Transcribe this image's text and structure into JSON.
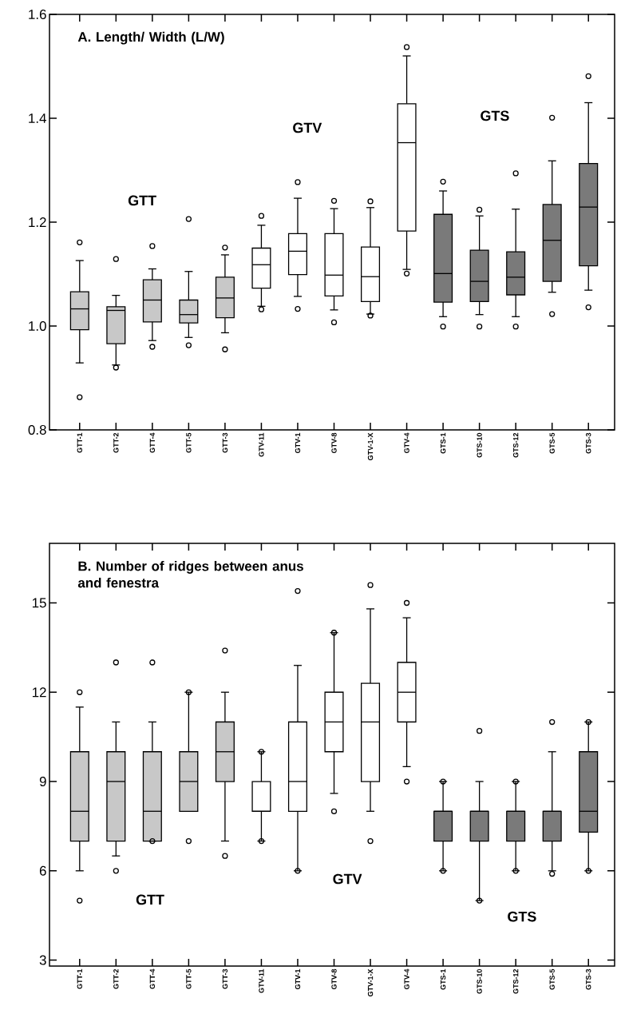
{
  "chart_data": [
    {
      "type": "box",
      "title": "A. Length/ Width (L/W)",
      "categories": [
        "GTT-1",
        "GTT-2",
        "GTT-4",
        "GTT-5",
        "GTT-3",
        "GTV-11",
        "GTV-1",
        "GTV-8",
        "GTV-1-X",
        "GTV-4",
        "GTS-1",
        "GTS-10",
        "GTS-12",
        "GTS-5",
        "GTS-3"
      ],
      "colors": [
        "#c8c8c8",
        "#c8c8c8",
        "#c8c8c8",
        "#c8c8c8",
        "#c8c8c8",
        "#ffffff",
        "#ffffff",
        "#ffffff",
        "#ffffff",
        "#ffffff",
        "#7a7a7a",
        "#7a7a7a",
        "#7a7a7a",
        "#7a7a7a",
        "#7a7a7a"
      ],
      "boxes": [
        {
          "low": 0.929,
          "q1": 0.993,
          "median": 1.033,
          "q3": 1.066,
          "high": 1.126,
          "outliers": [
            1.161,
            0.863
          ]
        },
        {
          "low": 0.925,
          "q1": 0.966,
          "median": 1.03,
          "q3": 1.037,
          "high": 1.059,
          "outliers": [
            1.129,
            0.92
          ]
        },
        {
          "low": 0.972,
          "q1": 1.008,
          "median": 1.05,
          "q3": 1.089,
          "high": 1.11,
          "outliers": [
            1.154,
            0.96
          ]
        },
        {
          "low": 0.978,
          "q1": 1.006,
          "median": 1.022,
          "q3": 1.05,
          "high": 1.105,
          "outliers": [
            1.206,
            0.963
          ]
        },
        {
          "low": 0.987,
          "q1": 1.016,
          "median": 1.054,
          "q3": 1.094,
          "high": 1.137,
          "outliers": [
            1.151,
            0.955
          ]
        },
        {
          "low": 1.038,
          "q1": 1.073,
          "median": 1.118,
          "q3": 1.15,
          "high": 1.194,
          "outliers": [
            1.212,
            1.032
          ]
        },
        {
          "low": 1.057,
          "q1": 1.099,
          "median": 1.144,
          "q3": 1.178,
          "high": 1.246,
          "outliers": [
            1.277,
            1.033
          ]
        },
        {
          "low": 1.031,
          "q1": 1.058,
          "median": 1.098,
          "q3": 1.178,
          "high": 1.226,
          "outliers": [
            1.241,
            1.007
          ]
        },
        {
          "low": 1.023,
          "q1": 1.047,
          "median": 1.095,
          "q3": 1.152,
          "high": 1.228,
          "outliers": [
            1.24,
            1.02
          ]
        },
        {
          "low": 1.109,
          "q1": 1.183,
          "median": 1.353,
          "q3": 1.428,
          "high": 1.52,
          "outliers": [
            1.537,
            1.101
          ]
        },
        {
          "low": 1.018,
          "q1": 1.046,
          "median": 1.101,
          "q3": 1.215,
          "high": 1.26,
          "outliers": [
            1.278,
            0.999
          ]
        },
        {
          "low": 1.022,
          "q1": 1.047,
          "median": 1.086,
          "q3": 1.146,
          "high": 1.212,
          "outliers": [
            1.224,
            0.999
          ]
        },
        {
          "low": 1.018,
          "q1": 1.06,
          "median": 1.094,
          "q3": 1.143,
          "high": 1.225,
          "outliers": [
            1.294,
            0.999
          ]
        },
        {
          "low": 1.065,
          "q1": 1.086,
          "median": 1.165,
          "q3": 1.234,
          "high": 1.318,
          "outliers": [
            1.401,
            1.023
          ]
        },
        {
          "low": 1.069,
          "q1": 1.116,
          "median": 1.229,
          "q3": 1.313,
          "high": 1.43,
          "outliers": [
            1.481,
            1.036
          ]
        }
      ],
      "ylim": [
        0.8,
        1.6
      ],
      "yticks": [
        {
          "value": 0.8,
          "label": "0.8"
        },
        {
          "value": 1.0,
          "label": "1.0"
        },
        {
          "value": 1.2,
          "label": "1.2"
        },
        {
          "value": 1.4,
          "label": "1.4"
        },
        {
          "value": 1.6,
          "label": "1.6"
        }
      ],
      "annotations": [
        "GTT",
        "GTV",
        "GTS"
      ]
    },
    {
      "type": "box",
      "title": "B. Number of ridges between anus and fenestra",
      "categories": [
        "GTT-1",
        "GTT-2",
        "GTT-4",
        "GTT-5",
        "GTT-3",
        "GTV-11",
        "GTV-1",
        "GTV-8",
        "GTV-1-X",
        "GTV-4",
        "GTS-1",
        "GTS-10",
        "GTS-12",
        "GTS-5",
        "GTS-3"
      ],
      "colors": [
        "#c8c8c8",
        "#c8c8c8",
        "#c8c8c8",
        "#c8c8c8",
        "#c8c8c8",
        "#ffffff",
        "#ffffff",
        "#ffffff",
        "#ffffff",
        "#ffffff",
        "#7a7a7a",
        "#7a7a7a",
        "#7a7a7a",
        "#7a7a7a",
        "#7a7a7a"
      ],
      "boxes": [
        {
          "low": 6,
          "q1": 7,
          "median": 8,
          "q3": 10,
          "high": 11.5,
          "outliers": [
            12,
            5
          ]
        },
        {
          "low": 6.5,
          "q1": 7,
          "median": 9,
          "q3": 10,
          "high": 11,
          "outliers": [
            13,
            6
          ]
        },
        {
          "low": 7,
          "q1": 7,
          "median": 8,
          "q3": 10,
          "high": 11,
          "outliers": [
            13,
            7
          ]
        },
        {
          "low": 8,
          "q1": 8,
          "median": 9,
          "q3": 10,
          "high": 12,
          "outliers": [
            12,
            7
          ]
        },
        {
          "low": 7,
          "q1": 9,
          "median": 10,
          "q3": 11,
          "high": 12,
          "outliers": [
            13.4,
            6.5
          ]
        },
        {
          "low": 7,
          "q1": 8,
          "median": 8,
          "q3": 9,
          "high": 10,
          "outliers": [
            10,
            7
          ]
        },
        {
          "low": 6,
          "q1": 8,
          "median": 9,
          "q3": 11,
          "high": 12.9,
          "outliers": [
            15.4,
            6
          ]
        },
        {
          "low": 8.6,
          "q1": 10,
          "median": 11,
          "q3": 12,
          "high": 14,
          "outliers": [
            14,
            8
          ]
        },
        {
          "low": 8,
          "q1": 9,
          "median": 11,
          "q3": 12.3,
          "high": 14.8,
          "outliers": [
            15.6,
            7
          ]
        },
        {
          "low": 9.5,
          "q1": 11,
          "median": 12,
          "q3": 13,
          "high": 14.5,
          "outliers": [
            15,
            9
          ]
        },
        {
          "low": 6,
          "q1": 7,
          "median": 8,
          "q3": 8,
          "high": 9,
          "outliers": [
            9,
            6
          ]
        },
        {
          "low": 5,
          "q1": 7,
          "median": 8,
          "q3": 8,
          "high": 9,
          "outliers": [
            10.7,
            5
          ]
        },
        {
          "low": 6,
          "q1": 7,
          "median": 8,
          "q3": 8,
          "high": 9,
          "outliers": [
            9,
            6
          ]
        },
        {
          "low": 6,
          "q1": 7,
          "median": 8,
          "q3": 8,
          "high": 10,
          "outliers": [
            11,
            5.9
          ]
        },
        {
          "low": 6,
          "q1": 7.3,
          "median": 8,
          "q3": 10,
          "high": 11,
          "outliers": [
            11,
            6
          ]
        }
      ],
      "ylim": [
        2.8,
        17
      ],
      "yticks": [
        3,
        6,
        9,
        12,
        15
      ],
      "annotations": [
        "GTT",
        "GTV",
        "GTS"
      ]
    }
  ]
}
